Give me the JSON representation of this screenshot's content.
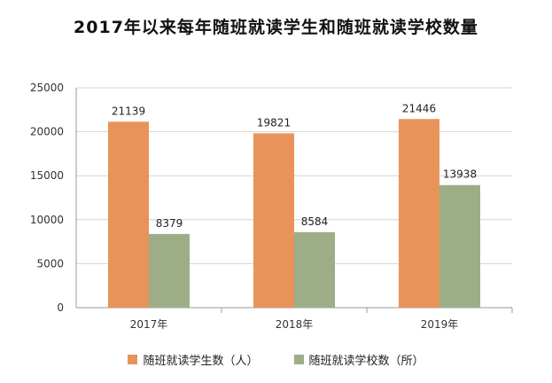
{
  "chart_data": {
    "type": "bar",
    "title": "2017年以来每年随班就读学生和随班就读学校数量",
    "categories": [
      "2017年",
      "2018年",
      "2019年"
    ],
    "series": [
      {
        "name": "随班就读学生数（人）",
        "values": [
          21139,
          19821,
          21446
        ],
        "color": "#E8935A"
      },
      {
        "name": "随班就读学校数（所）",
        "values": [
          8379,
          8584,
          13938
        ],
        "color": "#9DAE87"
      }
    ],
    "yticks": [
      0,
      5000,
      10000,
      15000,
      20000,
      25000
    ],
    "ylim": [
      0,
      25000
    ],
    "grid": true,
    "legend_position": "bottom"
  }
}
